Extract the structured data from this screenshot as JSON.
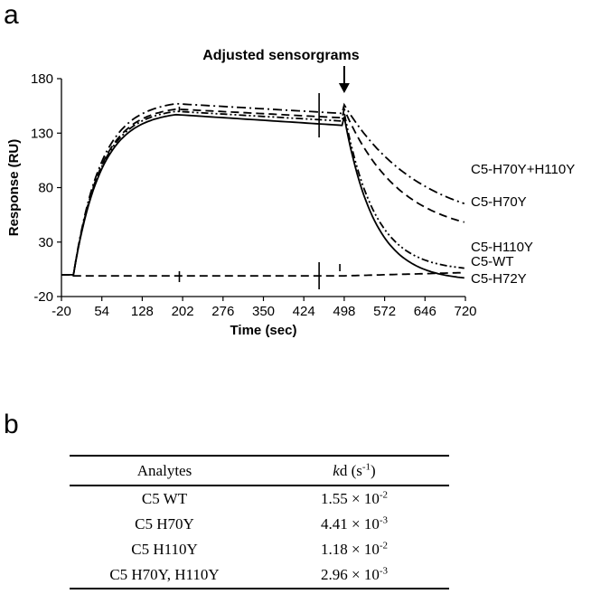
{
  "panels": {
    "a": "a",
    "b": "b"
  },
  "chart_data": {
    "type": "line",
    "annotation": "Adjusted sensorgrams",
    "annotation_x": 498,
    "xlabel": "Time (sec)",
    "ylabel": "Response (RU)",
    "xlim": [
      -20,
      720
    ],
    "ylim": [
      -20,
      180
    ],
    "x_ticks": [
      -20,
      54,
      128,
      202,
      276,
      350,
      424,
      498,
      572,
      646,
      720
    ],
    "y_ticks": [
      -20,
      30,
      80,
      130,
      180
    ],
    "series": [
      {
        "name": "C5-H70Y+H110Y",
        "style": "dashdot",
        "assoc_max": 157,
        "plateau_end": 148,
        "dissoc_end": 65
      },
      {
        "name": "C5-H70Y",
        "style": "dashed",
        "assoc_max": 152,
        "plateau_end": 144,
        "dissoc_end": 48
      },
      {
        "name": "C5-H110Y",
        "style": "dashdotdot",
        "assoc_max": 150,
        "plateau_end": 141,
        "dissoc_end": 6
      },
      {
        "name": "C5-WT",
        "style": "solid",
        "assoc_max": 147,
        "plateau_end": 137,
        "dissoc_end": -3
      },
      {
        "name": "C5-H72Y",
        "style": "dashed",
        "assoc_max": -1,
        "plateau_end": -1,
        "dissoc_end": 2
      }
    ]
  },
  "table": {
    "headers": {
      "analytes": "Analytes",
      "kd_italic": "k",
      "kd_rest": "d (s",
      "kd_exp": "-1",
      "kd_close": ")"
    },
    "rows": [
      {
        "analyte": "C5 WT",
        "mantissa": "1.55 × 10",
        "exp": "-2"
      },
      {
        "analyte": "C5 H70Y",
        "mantissa": "4.41 × 10",
        "exp": "-3"
      },
      {
        "analyte": "C5 H110Y",
        "mantissa": "1.18 × 10",
        "exp": "-2"
      },
      {
        "analyte": "C5 H70Y, H110Y",
        "mantissa": "2.96 × 10",
        "exp": "-3"
      }
    ]
  }
}
